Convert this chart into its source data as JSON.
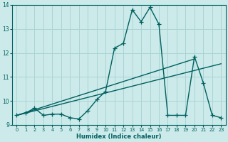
{
  "xlabel": "Humidex (Indice chaleur)",
  "bg_color": "#cceaea",
  "line_color": "#006060",
  "grid_color": "#aad4d4",
  "xlim": [
    -0.5,
    23.5
  ],
  "ylim": [
    9,
    14
  ],
  "yticks": [
    9,
    10,
    11,
    12,
    13,
    14
  ],
  "xticks": [
    0,
    1,
    2,
    3,
    4,
    5,
    6,
    7,
    8,
    9,
    10,
    11,
    12,
    13,
    14,
    15,
    16,
    17,
    18,
    19,
    20,
    21,
    22,
    23
  ],
  "series1_x": [
    0,
    1,
    2,
    3,
    4,
    5,
    6,
    7,
    8,
    9,
    10,
    11,
    12,
    13,
    14,
    15,
    16,
    17,
    18,
    19,
    20,
    21,
    22,
    23
  ],
  "series1_y": [
    9.4,
    9.5,
    9.7,
    9.4,
    9.45,
    9.45,
    9.3,
    9.25,
    9.6,
    10.05,
    10.4,
    12.2,
    12.4,
    13.8,
    13.3,
    13.9,
    13.2,
    9.4,
    9.4,
    9.4,
    11.85,
    10.75,
    9.4,
    9.3
  ],
  "trend1_x": [
    0,
    20
  ],
  "trend1_y": [
    9.4,
    11.75
  ],
  "trend2_x": [
    0,
    23
  ],
  "trend2_y": [
    9.4,
    11.55
  ],
  "marker": "+",
  "markersize": 4,
  "linewidth": 1.0
}
